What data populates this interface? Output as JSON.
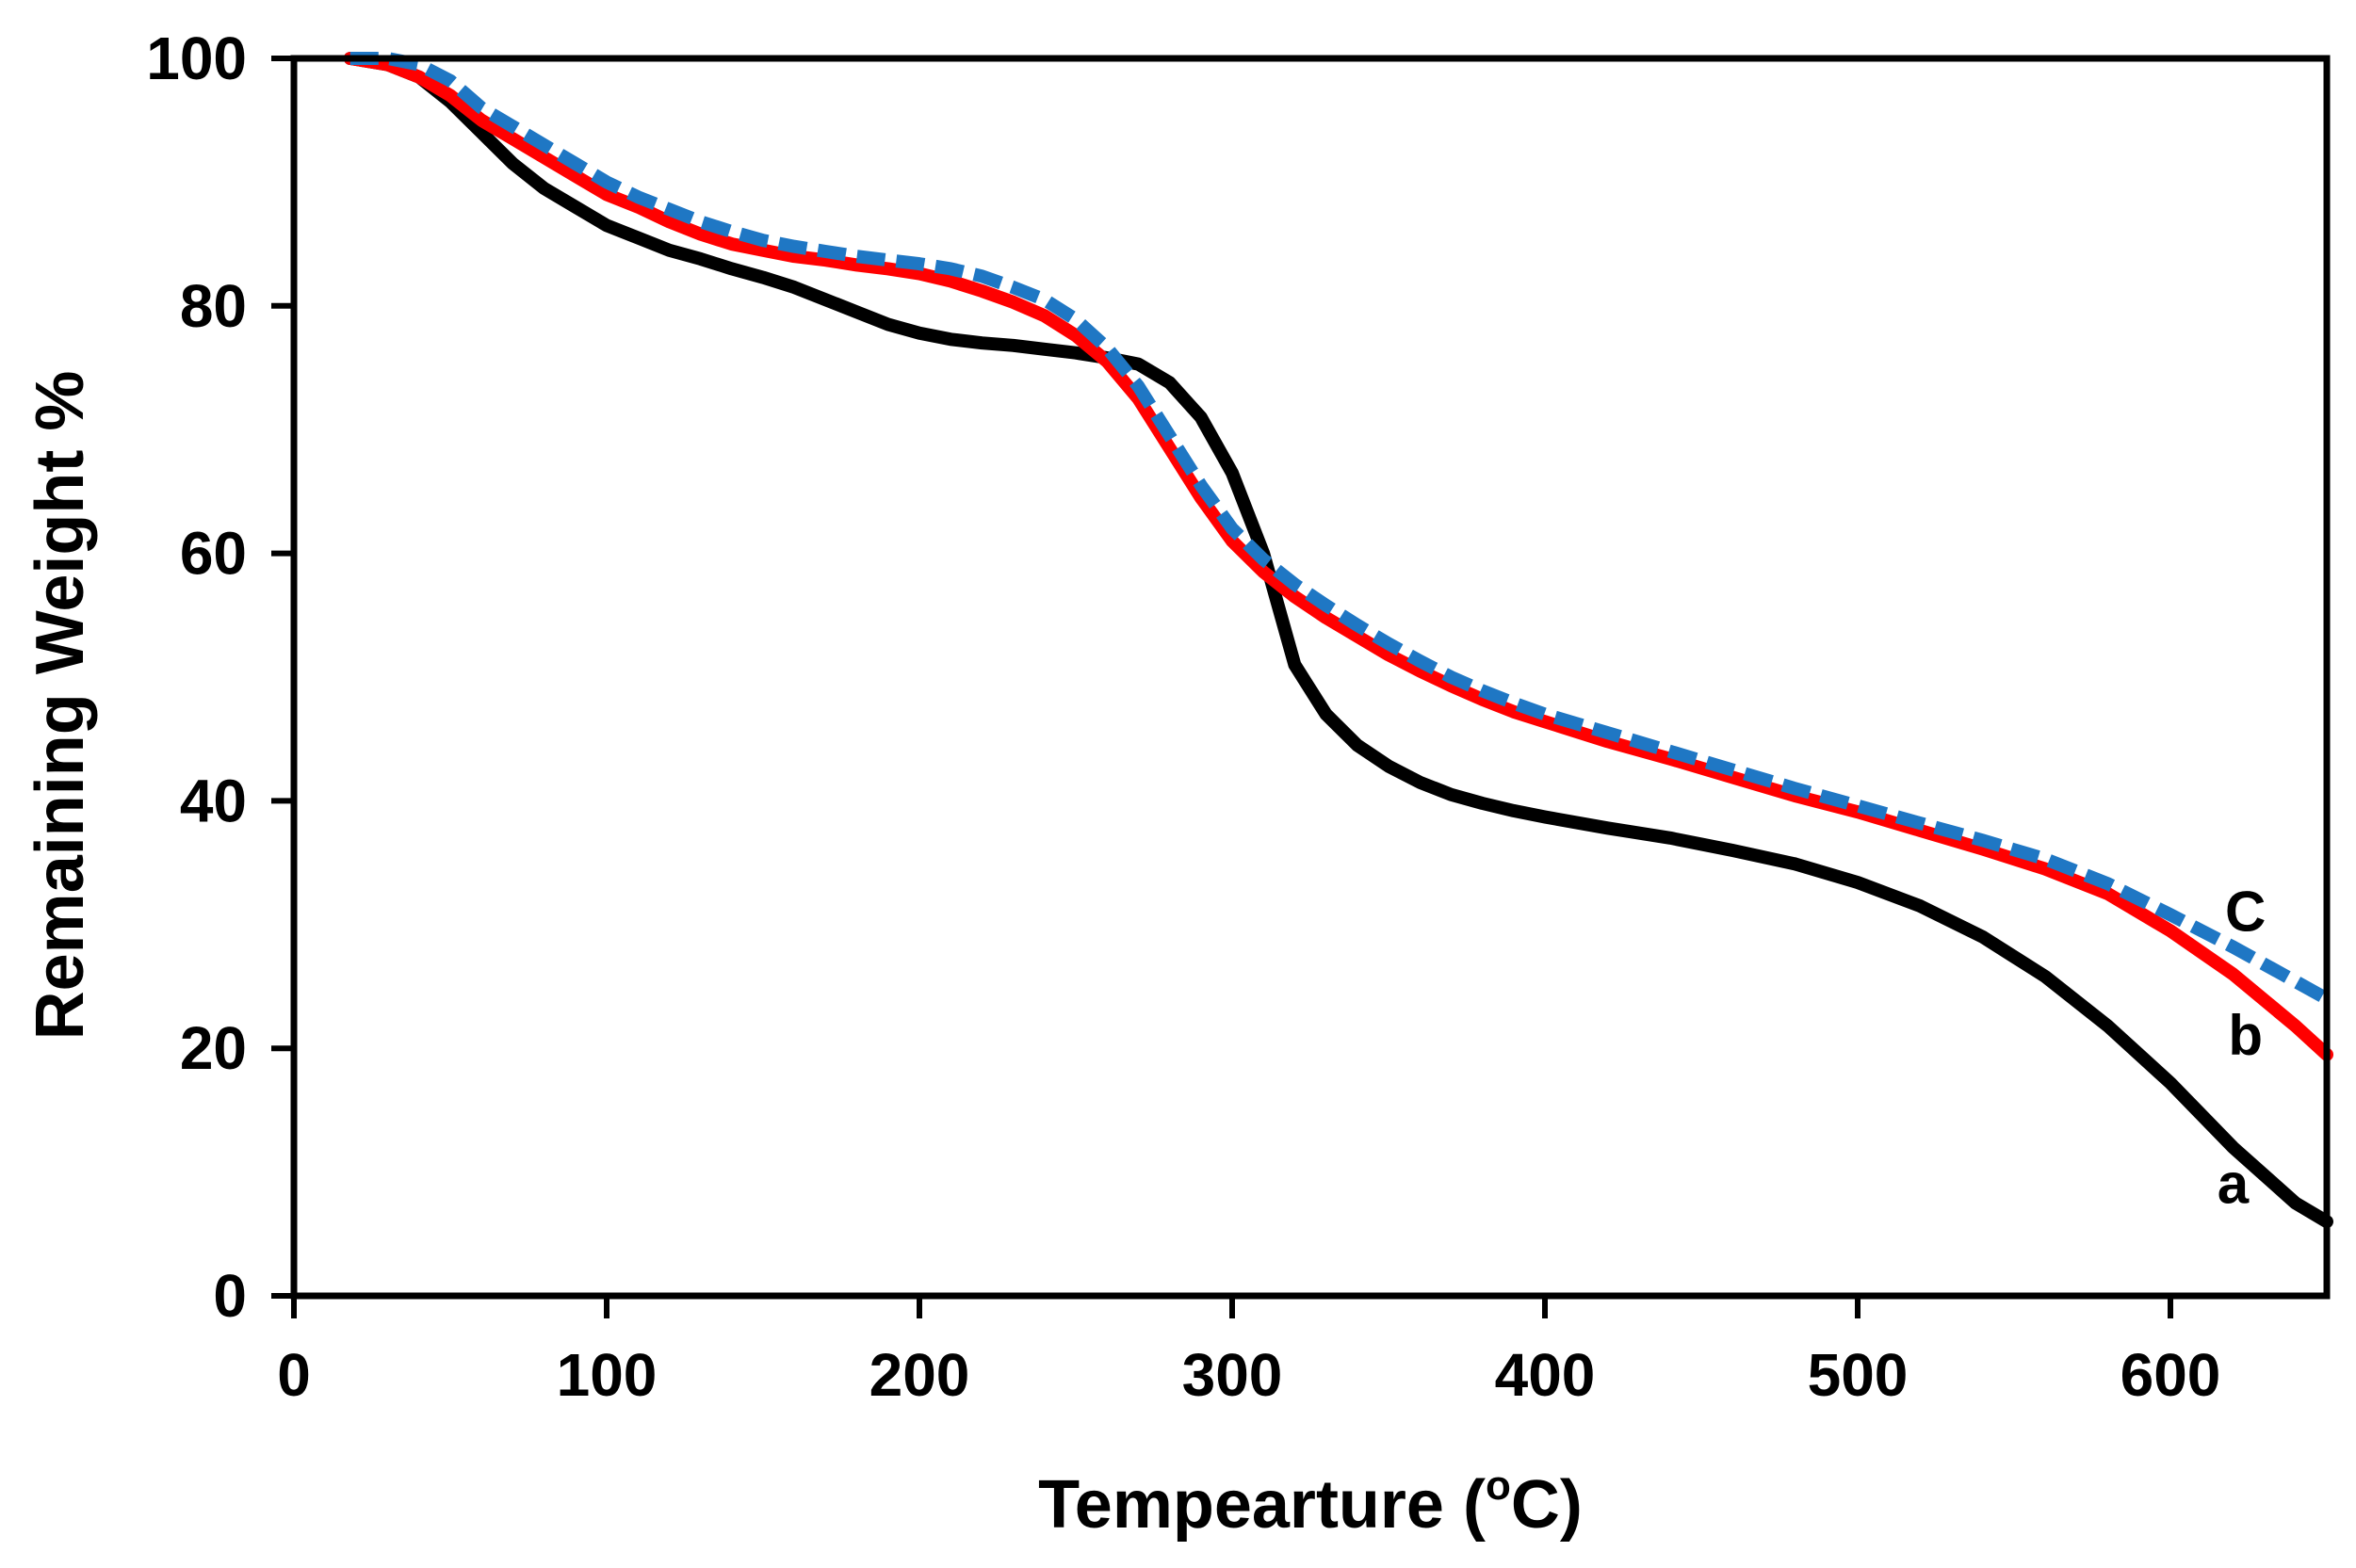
{
  "chart_data": {
    "type": "line",
    "title": "",
    "xlabel_main": "Tempearture (",
    "xlabel_sup": "o",
    "xlabel_end": "C)",
    "ylabel": "Remaining  Weight  %",
    "xlim": [
      0,
      650
    ],
    "ylim": [
      0,
      100
    ],
    "xticks": [
      0,
      100,
      200,
      300,
      400,
      500,
      600
    ],
    "yticks": [
      0,
      20,
      40,
      60,
      80,
      100
    ],
    "grid": false,
    "series": [
      {
        "name": "a",
        "label": "a",
        "color": "#000000",
        "dash": "solid",
        "label_at": [
          620,
          9
        ],
        "points": [
          [
            18,
            100
          ],
          [
            30,
            99.5
          ],
          [
            40,
            98.5
          ],
          [
            50,
            96.5
          ],
          [
            60,
            94
          ],
          [
            70,
            91.5
          ],
          [
            80,
            89.5
          ],
          [
            90,
            88
          ],
          [
            100,
            86.5
          ],
          [
            110,
            85.5
          ],
          [
            120,
            84.5
          ],
          [
            130,
            83.8
          ],
          [
            140,
            83
          ],
          [
            150,
            82.3
          ],
          [
            160,
            81.5
          ],
          [
            170,
            80.5
          ],
          [
            180,
            79.5
          ],
          [
            190,
            78.5
          ],
          [
            200,
            77.8
          ],
          [
            210,
            77.3
          ],
          [
            220,
            77
          ],
          [
            230,
            76.8
          ],
          [
            240,
            76.5
          ],
          [
            250,
            76.2
          ],
          [
            260,
            75.8
          ],
          [
            270,
            75.3
          ],
          [
            280,
            73.8
          ],
          [
            290,
            71
          ],
          [
            300,
            66.5
          ],
          [
            310,
            60
          ],
          [
            320,
            51
          ],
          [
            330,
            47
          ],
          [
            340,
            44.5
          ],
          [
            350,
            42.8
          ],
          [
            360,
            41.5
          ],
          [
            370,
            40.5
          ],
          [
            380,
            39.8
          ],
          [
            390,
            39.2
          ],
          [
            400,
            38.7
          ],
          [
            420,
            37.8
          ],
          [
            440,
            37
          ],
          [
            460,
            36
          ],
          [
            480,
            34.9
          ],
          [
            500,
            33.4
          ],
          [
            520,
            31.5
          ],
          [
            540,
            29
          ],
          [
            560,
            25.8
          ],
          [
            580,
            21.8
          ],
          [
            600,
            17.2
          ],
          [
            620,
            12
          ],
          [
            640,
            7.5
          ],
          [
            650,
            6
          ]
        ]
      },
      {
        "name": "b",
        "label": "b",
        "color": "#ff0000",
        "dash": "solid",
        "label_at": [
          624,
          21
        ],
        "points": [
          [
            18,
            100
          ],
          [
            30,
            99.5
          ],
          [
            40,
            98.5
          ],
          [
            50,
            97
          ],
          [
            60,
            95
          ],
          [
            70,
            93.5
          ],
          [
            80,
            92
          ],
          [
            90,
            90.5
          ],
          [
            100,
            89
          ],
          [
            110,
            88
          ],
          [
            120,
            86.8
          ],
          [
            130,
            85.8
          ],
          [
            140,
            85
          ],
          [
            150,
            84.5
          ],
          [
            160,
            84
          ],
          [
            170,
            83.7
          ],
          [
            180,
            83.3
          ],
          [
            190,
            83
          ],
          [
            200,
            82.6
          ],
          [
            210,
            82
          ],
          [
            220,
            81.2
          ],
          [
            230,
            80.3
          ],
          [
            240,
            79.2
          ],
          [
            250,
            77.6
          ],
          [
            260,
            75.5
          ],
          [
            270,
            72.5
          ],
          [
            280,
            68.5
          ],
          [
            290,
            64.5
          ],
          [
            300,
            61
          ],
          [
            310,
            58.5
          ],
          [
            320,
            56.5
          ],
          [
            330,
            54.8
          ],
          [
            340,
            53.3
          ],
          [
            350,
            51.8
          ],
          [
            360,
            50.5
          ],
          [
            370,
            49.3
          ],
          [
            380,
            48.2
          ],
          [
            390,
            47.2
          ],
          [
            400,
            46.4
          ],
          [
            420,
            44.8
          ],
          [
            440,
            43.4
          ],
          [
            460,
            41.9
          ],
          [
            480,
            40.4
          ],
          [
            500,
            39.1
          ],
          [
            520,
            37.6
          ],
          [
            540,
            36.1
          ],
          [
            560,
            34.5
          ],
          [
            580,
            32.5
          ],
          [
            600,
            29.5
          ],
          [
            620,
            26
          ],
          [
            640,
            21.8
          ],
          [
            650,
            19.5
          ]
        ]
      },
      {
        "name": "C",
        "label": "C",
        "color": "#1f77c4",
        "dash": "dashed",
        "label_at": [
          624,
          31
        ],
        "points": [
          [
            18,
            100
          ],
          [
            30,
            100
          ],
          [
            40,
            99.5
          ],
          [
            50,
            98.2
          ],
          [
            60,
            96
          ],
          [
            70,
            94.5
          ],
          [
            80,
            93
          ],
          [
            90,
            91.5
          ],
          [
            100,
            90
          ],
          [
            110,
            88.8
          ],
          [
            120,
            87.8
          ],
          [
            130,
            86.8
          ],
          [
            140,
            86
          ],
          [
            150,
            85.3
          ],
          [
            160,
            84.8
          ],
          [
            170,
            84.4
          ],
          [
            180,
            84
          ],
          [
            190,
            83.7
          ],
          [
            200,
            83.4
          ],
          [
            210,
            83
          ],
          [
            220,
            82.4
          ],
          [
            230,
            81.5
          ],
          [
            240,
            80.5
          ],
          [
            250,
            78.9
          ],
          [
            260,
            76.6
          ],
          [
            270,
            73.5
          ],
          [
            280,
            69.5
          ],
          [
            290,
            65.5
          ],
          [
            300,
            62
          ],
          [
            310,
            59.5
          ],
          [
            320,
            57.5
          ],
          [
            330,
            55.8
          ],
          [
            340,
            54.2
          ],
          [
            350,
            52.7
          ],
          [
            360,
            51.3
          ],
          [
            370,
            50
          ],
          [
            380,
            48.9
          ],
          [
            390,
            47.9
          ],
          [
            400,
            47
          ],
          [
            420,
            45.5
          ],
          [
            440,
            44
          ],
          [
            460,
            42.5
          ],
          [
            480,
            41
          ],
          [
            500,
            39.6
          ],
          [
            520,
            38.2
          ],
          [
            540,
            36.8
          ],
          [
            560,
            35.3
          ],
          [
            580,
            33.3
          ],
          [
            600,
            30.8
          ],
          [
            620,
            28.2
          ],
          [
            640,
            25.4
          ],
          [
            650,
            24
          ]
        ]
      }
    ]
  }
}
